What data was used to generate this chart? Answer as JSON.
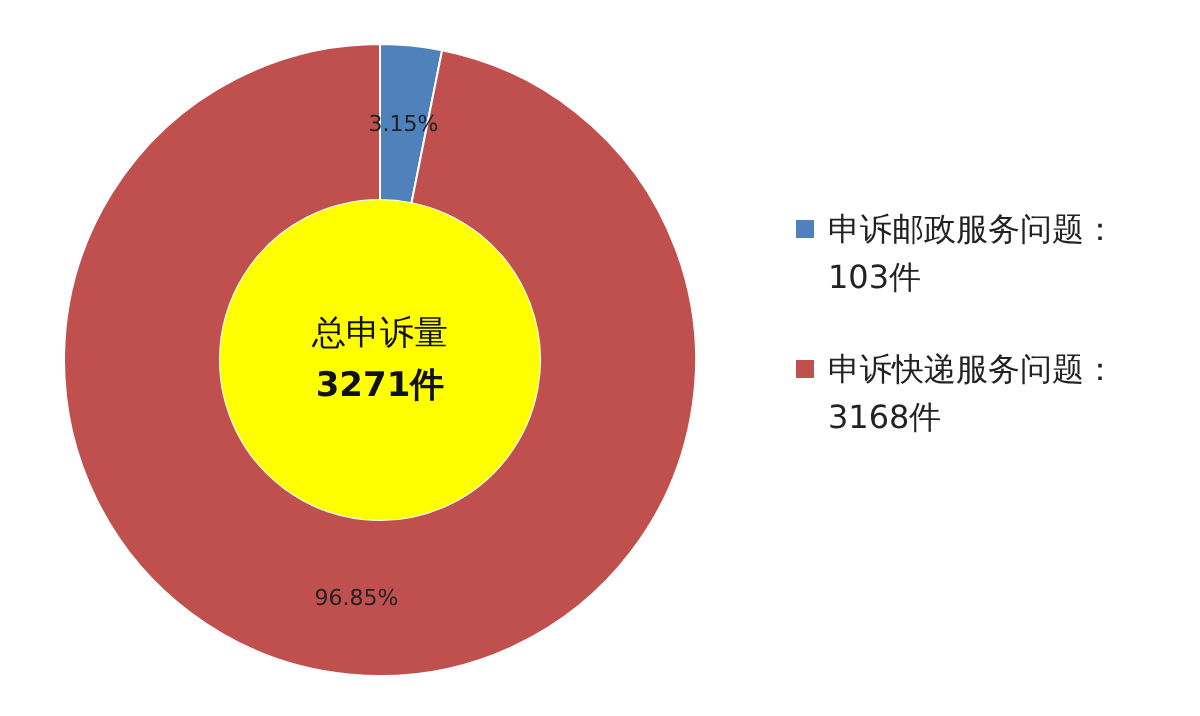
{
  "chart_data": {
    "type": "donut",
    "categories": [
      "申诉邮政服务问题：\n103件",
      "申诉快递服务问题：\n3168件"
    ],
    "values": [
      3.15,
      96.85
    ],
    "colors": [
      "#4f81bd",
      "#c0504d"
    ],
    "value_labels": [
      "3.15%",
      "96.85%"
    ],
    "annotations": [
      "总申诉量",
      "3271件"
    ],
    "legend": "right"
  }
}
